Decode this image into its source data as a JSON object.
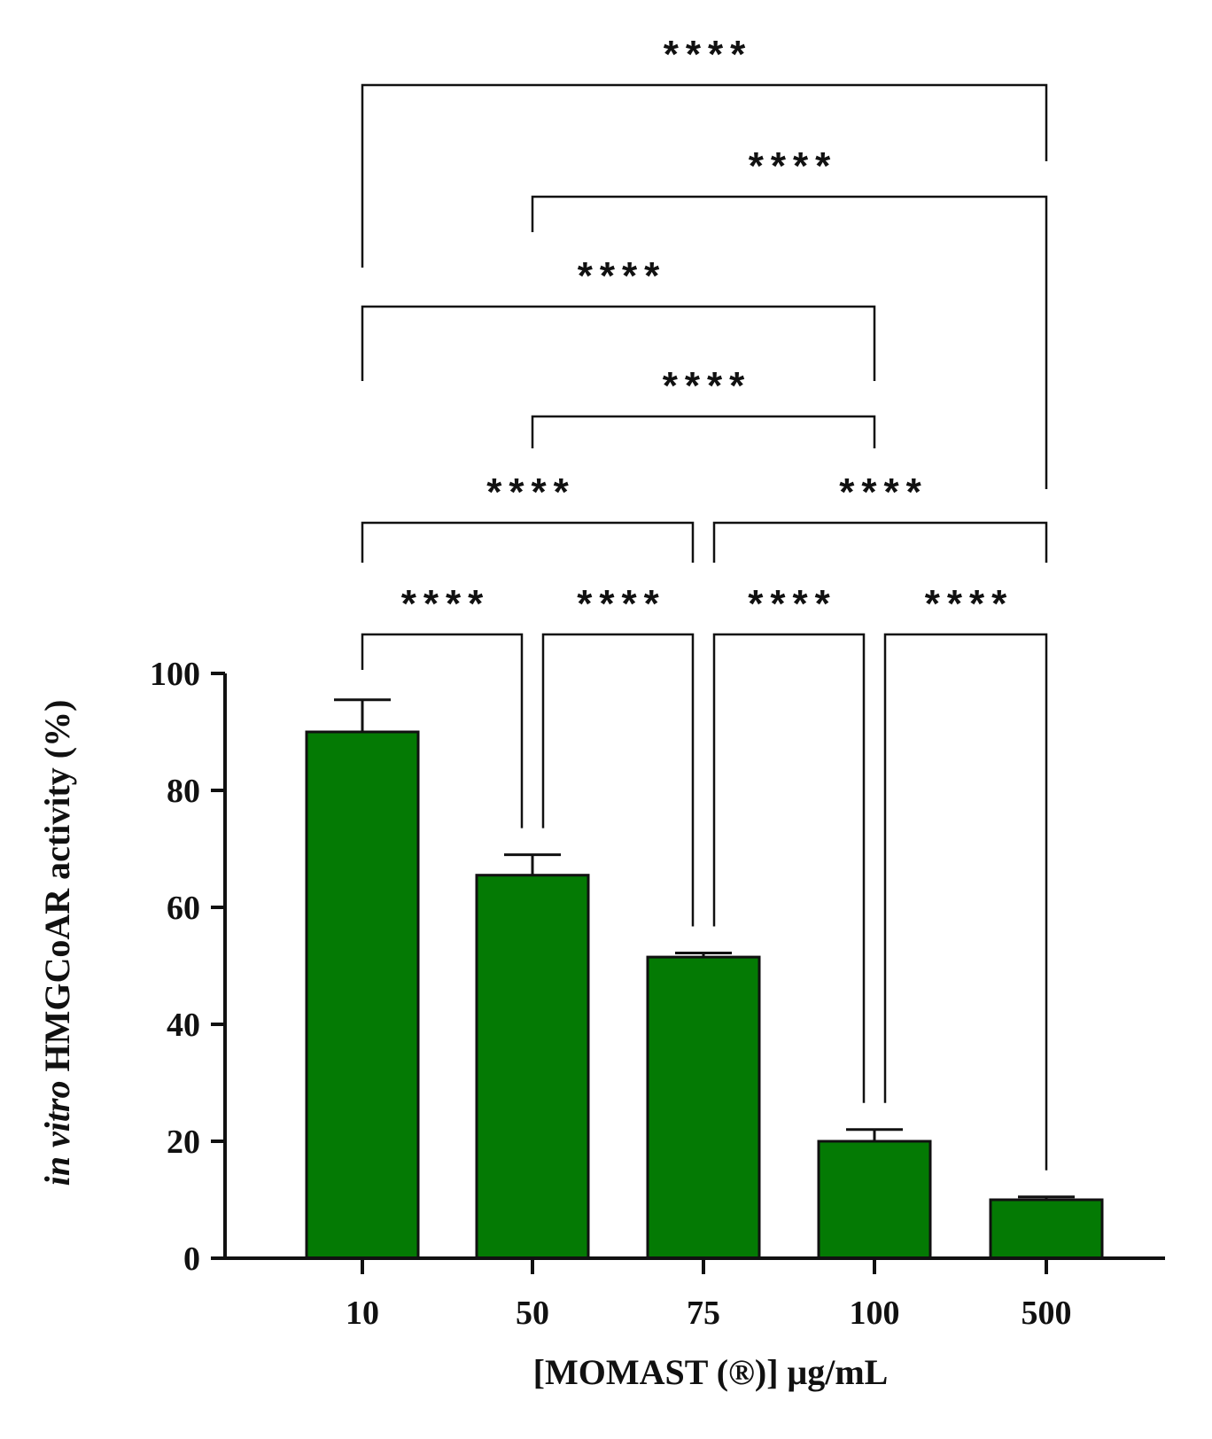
{
  "chart_data": {
    "type": "bar",
    "categories": [
      "10",
      "50",
      "75",
      "100",
      "500"
    ],
    "values": [
      90,
      65.5,
      51.5,
      20,
      10
    ],
    "errors": [
      5.5,
      3.5,
      0.7,
      2.0,
      0.5
    ],
    "ylim": [
      0,
      100
    ],
    "yticks": [
      0,
      20,
      40,
      60,
      80,
      100
    ],
    "ylabel_italic": "in vitro",
    "ylabel_rest": "HMGCoAR activity (%)",
    "xlabel": "[MOMAST (®)] μg/mL",
    "bar_color": "#047a04",
    "comparisons": [
      {
        "from": 0,
        "to": 1,
        "label": "****"
      },
      {
        "from": 1,
        "to": 2,
        "label": "****"
      },
      {
        "from": 2,
        "to": 3,
        "label": "****"
      },
      {
        "from": 3,
        "to": 4,
        "label": "****"
      },
      {
        "from": 0,
        "to": 2,
        "label": "****"
      },
      {
        "from": 2,
        "to": 4,
        "label": "****"
      },
      {
        "from": 1,
        "to": 3,
        "label": "****"
      },
      {
        "from": 0,
        "to": 3,
        "label": "****"
      },
      {
        "from": 1,
        "to": 4,
        "label": "****"
      },
      {
        "from": 0,
        "to": 4,
        "label": "****"
      }
    ]
  }
}
